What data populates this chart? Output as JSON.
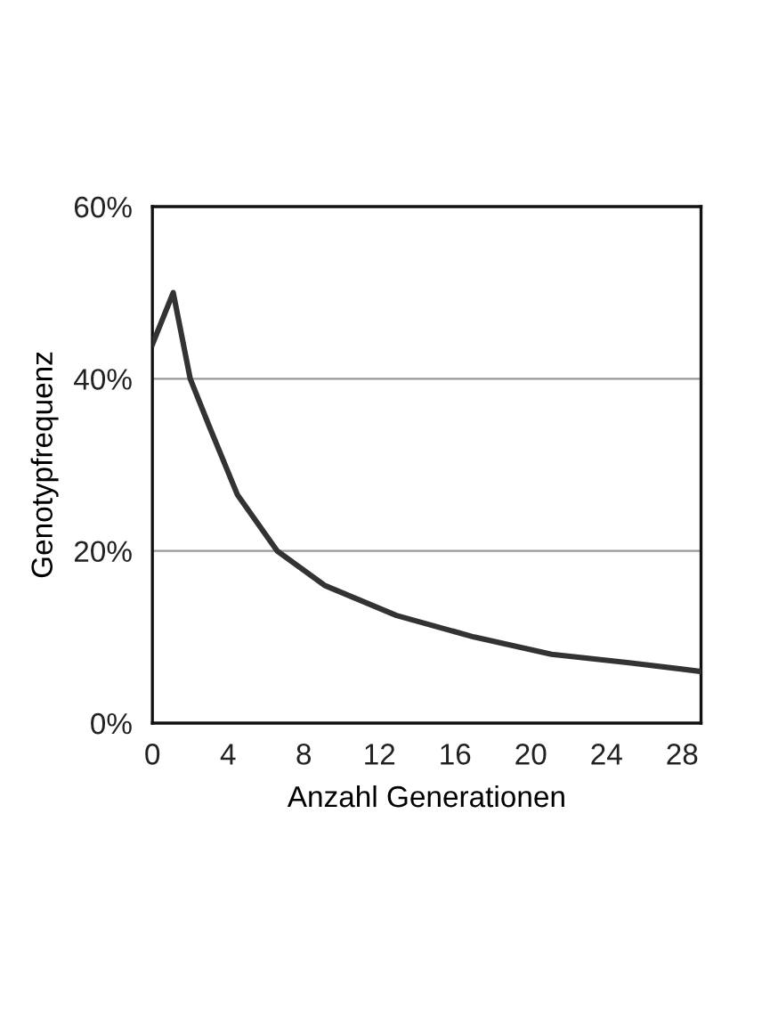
{
  "chart_data": {
    "type": "line",
    "xlabel": "Anzahl Generationen",
    "ylabel": "Genotypfrequenz",
    "x": [
      0,
      1.1,
      2,
      3,
      4.5,
      6.6,
      9.1,
      12.9,
      17,
      21.1,
      25.2,
      29
    ],
    "series": [
      {
        "color": "#333333",
        "values": [
          44,
          50,
          40,
          34.5,
          26.5,
          20,
          16,
          12.5,
          10,
          8,
          7,
          6
        ]
      }
    ],
    "xlim": [
      0,
      29
    ],
    "xticks": [
      0,
      4,
      8,
      12,
      16,
      20,
      24,
      28
    ],
    "ylim": [
      0,
      60
    ],
    "yticks": [
      {
        "value": 0,
        "label": "0%"
      },
      {
        "value": 20,
        "label": "20%"
      },
      {
        "value": 40,
        "label": "40%"
      },
      {
        "value": 60,
        "label": "60%"
      }
    ],
    "grid": "y",
    "marker": "none",
    "line_style": "solid"
  }
}
